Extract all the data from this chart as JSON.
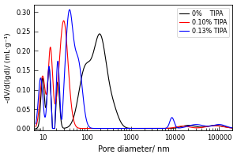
{
  "title": "",
  "xlabel": "Pore diameter/ nm",
  "ylabel": "-dV/d(lgd)/ (mL·g⁻¹)",
  "xlim_log": [
    6.5,
    200000
  ],
  "ylim": [
    -0.005,
    0.32
  ],
  "yticks": [
    0.0,
    0.05,
    0.1,
    0.15,
    0.2,
    0.25,
    0.3
  ],
  "legend": [
    "0%    TIPA",
    "0.10% TIPA",
    "0.13% TIPA"
  ],
  "colors": [
    "black",
    "red",
    "blue"
  ],
  "figsize": [
    3.0,
    2.0
  ],
  "dpi": 100
}
